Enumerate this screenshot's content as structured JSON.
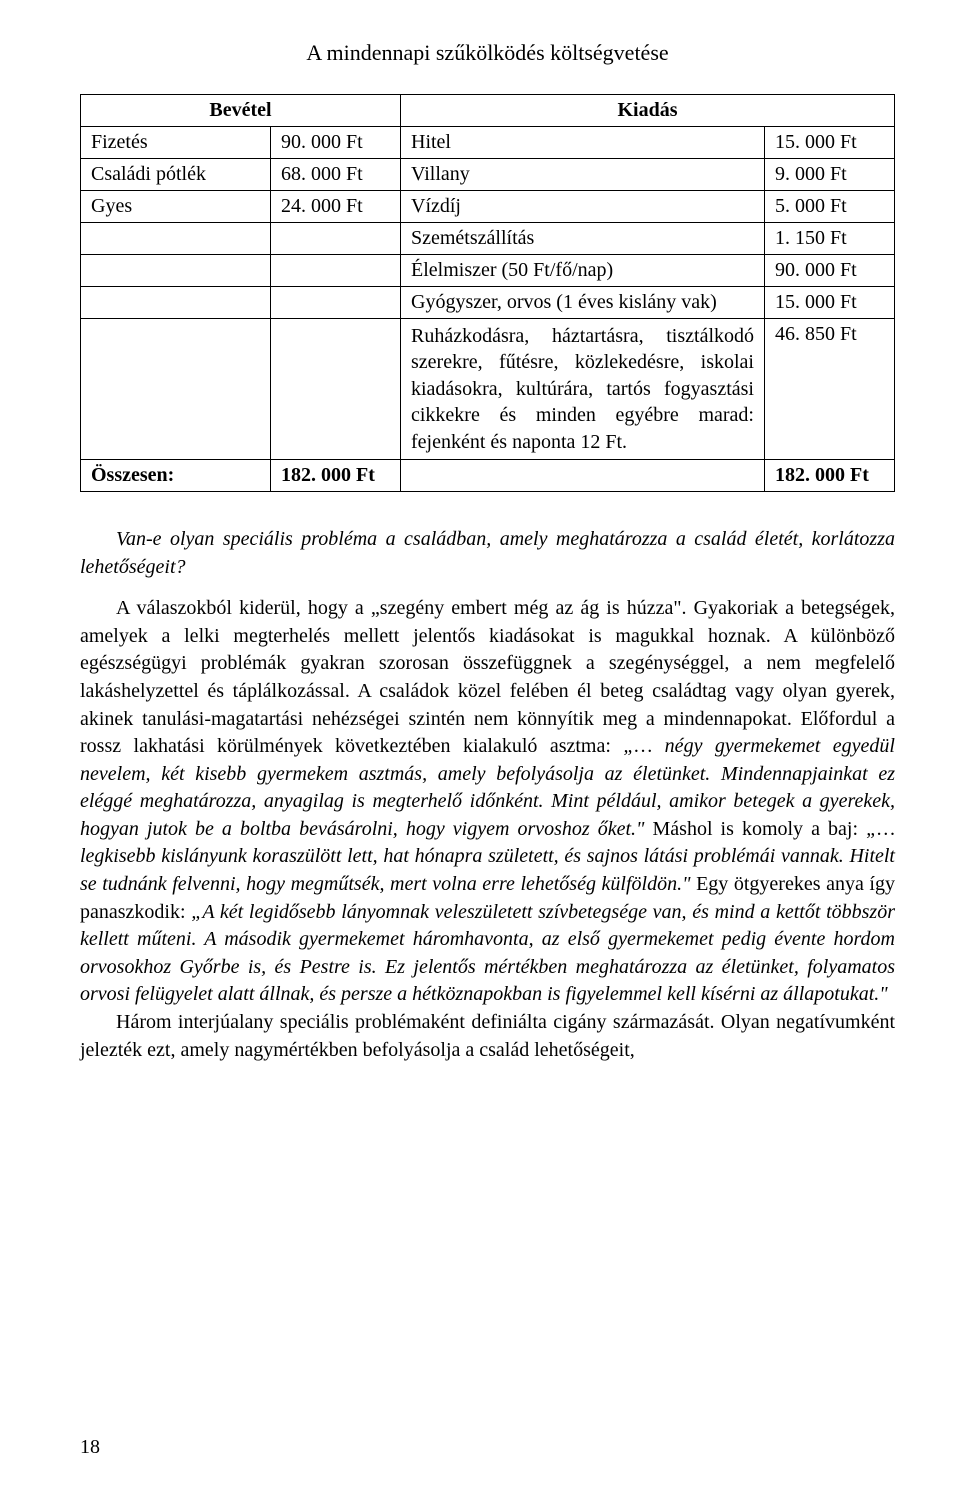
{
  "title": "A mindennapi szűkölködés költségvetése",
  "table": {
    "headers": {
      "income": "Bevétel",
      "expense": "Kiadás"
    },
    "income_rows": [
      {
        "label": "Fizetés",
        "amount": "90. 000 Ft"
      },
      {
        "label": "Családi pótlék",
        "amount": "68. 000 Ft"
      },
      {
        "label": "Gyes",
        "amount": "24. 000 Ft"
      }
    ],
    "expense_rows": [
      {
        "label": "Hitel",
        "amount": "15. 000 Ft"
      },
      {
        "label": "Villany",
        "amount": "9. 000 Ft"
      },
      {
        "label": "Vízdíj",
        "amount": "5. 000 Ft"
      },
      {
        "label": "Szemétszállítás",
        "amount": "1. 150 Ft"
      },
      {
        "label": "Élelmiszer (50 Ft/fő/nap)",
        "amount": "90. 000 Ft"
      },
      {
        "label": "Gyógyszer, orvos (1 éves kislány vak)",
        "amount": "15. 000 Ft"
      },
      {
        "label": "Ruházkodásra, háztartásra, tisztálkodó szerekre, fűtésre, közlekedésre, iskolai kiadásokra, kultúrára, tartós fogyasztási cikkekre és minden egyébre marad: fejenként és naponta 12 Ft.",
        "amount": "46. 850 Ft"
      }
    ],
    "total": {
      "label": "Összesen:",
      "income_total": "182. 000 Ft",
      "expense_total": "182. 000 Ft"
    }
  },
  "paragraphs": {
    "p1": {
      "italic": "Van-e olyan speciális probléma a családban, amely meghatározza a család életét, korlátozza lehetőségeit?"
    },
    "p2": {
      "run1": "A válaszokból kiderül, hogy a „szegény embert még az ág is húzza\". Gyakoriak a betegségek, amelyek a lelki megterhelés mellett jelentős kiadásokat is magukkal hoznak. A különböző egészségügyi problémák gyakran szorosan összefüggnek a szegénységgel, a nem megfelelő lakáshelyzettel és táplálkozással. A családok közel felében él beteg családtag vagy olyan gyerek, akinek tanulási-magatartási nehézségei szintén nem könnyítik meg a mindennapokat. Előfordul a rossz lakhatási körülmények következtében kialakuló asztma: ",
      "italic1": "„… négy gyermekemet egyedül nevelem, két kisebb gyermekem asztmás, amely befolyásolja az életünket. Mindennapjainkat ez eléggé meghatározza, anyagilag is megterhelő időnként. Mint például, amikor betegek a gyerekek, hogyan jutok be a boltba bevásárolni, hogy vigyem orvoshoz őket.\"",
      "run2": " Máshol is komoly a baj: ",
      "italic2": "„… legkisebb kislányunk koraszülött lett, hat hónapra született, és sajnos látási problémái vannak. Hitelt se tudnánk felvenni, hogy megműtsék, mert volna erre lehetőség külföldön.\"",
      "run3": " Egy ötgyerekes anya így panaszkodik: ",
      "italic3": "„A két legidősebb lányomnak veleszületett szívbetegsége van, és mind a kettőt többször kellett műteni. A második gyermekemet háromhavonta, az első gyermekemet pedig évente hordom orvosokhoz Győrbe is, és Pestre is. Ez jelentős mértékben meghatározza az életünket, folyamatos orvosi felügyelet alatt állnak, és persze a hétköznapokban is figyelemmel kell kísérni az állapotukat.\""
    },
    "p3": {
      "run1": "Három interjúalany speciális problémaként definiálta cigány származását. Olyan negatívumként jelezték ezt, amely nagymértékben befolyásolja a család lehetőségeit,"
    }
  },
  "page_number": "18"
}
